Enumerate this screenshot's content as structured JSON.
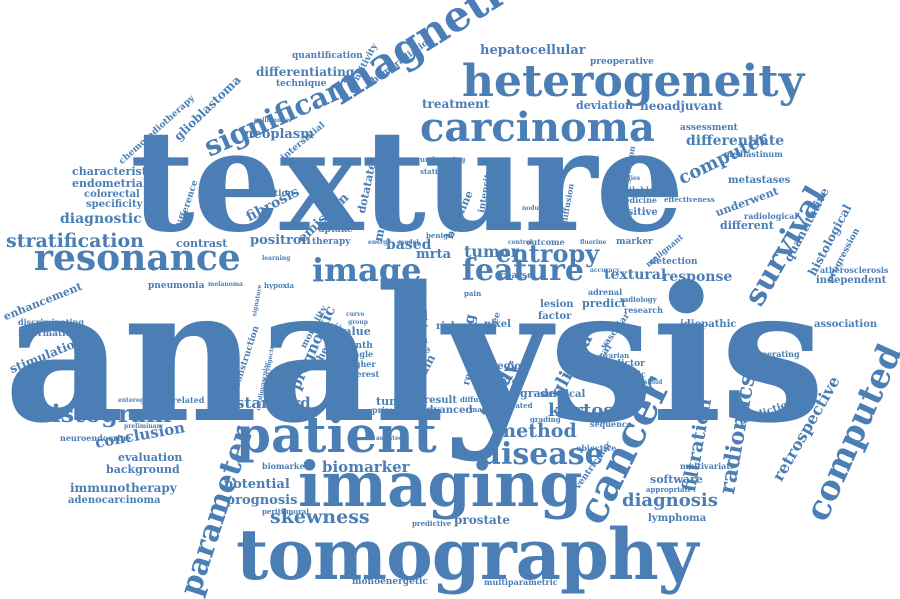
{
  "theme": {
    "word_color": "#4a7eb5",
    "background": "#ffffff"
  },
  "words": {
    "analysis": "analysis",
    "texture": "texture",
    "tomography": "tomography",
    "imaging": "imaging",
    "patient": "patient",
    "heterogeneity": "heterogeneity",
    "carcinoma": "carcinoma",
    "magnetic": "magnetic",
    "resonance": "resonance",
    "image": "image",
    "feature": "feature",
    "cancer": "cancer",
    "computed": "computed",
    "survival": "survival",
    "parameter": "parameter",
    "disease": "disease",
    "histogram": "histogram",
    "significant": "significant",
    "radiomics": "radiomics",
    "stratification": "stratification",
    "skewness": "skewness",
    "entropy": "entropy",
    "tumor": "tumor",
    "method": "method",
    "kurtosis": "kurtosis",
    "diagnosis": "diagnosis",
    "filtration": "filtration",
    "computer": "computer",
    "study": "study",
    "glioma": "glioma",
    "biomarker": "biomarker",
    "conclusion": "conclusion",
    "retrospective": "retrospective",
    "response": "response",
    "textural": "textural",
    "prognostic": "prognostic",
    "differentiate": "differentiate",
    "standard": "standard",
    "fibrosis": "fibrosis",
    "positron": "positron",
    "emission": "emission",
    "based": "based",
    "mrta": "mrta",
    "diagnostic": "diagnostic",
    "enhancement": "enhancement",
    "stimulation": "stimulation",
    "neoplasm": "neoplasm",
    "treatment": "treatment",
    "hepatocellular": "hepatocellular",
    "differentiating": "differentiating",
    "glioblastoma": "glioblastoma",
    "deviation": "deviation",
    "neoadjuvant": "neoadjuvant",
    "potential": "potential",
    "prognosis": "prognosis",
    "immunotherapy": "immunotherapy",
    "adenocarcinoma": "adenocarcinoma",
    "background": "background",
    "evaluation": "evaluation",
    "prostate": "prostate",
    "lymphoma": "lymphoma",
    "software": "software",
    "prediction": "prediction",
    "quantitative": "quantitative",
    "histological": "histological",
    "underwent": "underwent",
    "association": "association",
    "metastases": "metastases",
    "different": "different",
    "positive": "positive",
    "idiopathic": "idiopathic",
    "result": "result",
    "tumour": "tumour",
    "advanced": "advanced",
    "grade": "grade",
    "lesion": "lesion",
    "factor": "factor",
    "predict": "predict",
    "endometrial": "endometrial",
    "colorectal": "colorectal",
    "specificity": "specificity",
    "characteristic": "characteristic",
    "difference": "difference",
    "contrast": "contrast",
    "reconstruction": "reconstruction",
    "pneumonia": "pneumonia",
    "information": "information",
    "discriminating": "discriminating",
    "chemoradiotherapy": "chemoradiotherapy",
    "quantification": "quantification",
    "technique": "technique",
    "chemoradiation": "chemoradiation",
    "sensitivity": "sensitivity",
    "preoperative": "preoperative",
    "assessment": "assessment",
    "mediastinum": "mediastinum",
    "correlation": "correlation",
    "interstitial": "interstitial",
    "metastatic": "metastatic",
    "dotatate": "dotatate",
    "monoenergetic": "monoenergetic",
    "multiparametric": "multiparametric",
    "neuroendocrine": "neuroendocrine",
    "correlated": "correlated",
    "biomarkers": "biomarkers",
    "peritumoral": "peritumoral",
    "cell": "cell",
    "liver": "liver",
    "ctta": "ctta",
    "scale": "scale",
    "risk": "risk",
    "value": "value",
    "month": "month",
    "lung": "lung",
    "brain": "brain",
    "rectal": "rectal",
    "region": "region",
    "pixel": "pixel",
    "detection": "detection",
    "marker": "marker",
    "independent": "independent",
    "atherosclerosis": "atherosclerosis",
    "progression": "progression",
    "radiological": "radiological",
    "coarse": "coarse",
    "outcome": "outcome",
    "hepatic": "hepatic",
    "uptake": "uptake",
    "therapy": "therapy",
    "mortality": "mortality",
    "operating": "operating",
    "multivariate": "multivariate",
    "appropriate": "appropriate",
    "objective": "objective",
    "surgical": "surgical",
    "predictive": "predictive",
    "sequence": "sequence",
    "radiomic": "radiomic",
    "predictor": "predictor",
    "medicine": "medicine",
    "available": "available",
    "regression": "regression",
    "primary": "primary",
    "single": "single",
    "higher": "higher",
    "interest": "interest",
    "texrad": "texrad",
    "treated": "treated",
    "machine": "machine",
    "diffuse": "diffuse",
    "grading": "grading",
    "ventricular": "ventricular",
    "clinical": "clinical",
    "ovarian": "ovarian",
    "vascular": "vascular",
    "research": "research",
    "radiology": "radiology",
    "adrenal": "adrenal",
    "effectiveness": "effectiveness",
    "statistical": "statistical",
    "undergoing": "undergoing",
    "baseline": "baseline",
    "intensity": "intensity",
    "benign": "benign",
    "hypoxia": "hypoxia",
    "melanoma": "melanoma",
    "enterography": "enterography",
    "gallbladder": "gallbladder",
    "signature": "signature",
    "threshold": "threshold",
    "pain": "pain",
    "free": "free",
    "fluorine": "fluorine",
    "malignant": "malignant",
    "diffusion": "diffusion",
    "cardiovascular": "cardiovascular",
    "laryngectomy": "laryngectomy",
    "studies": "studies",
    "learning": "learning",
    "control": "control",
    "nodule": "nodule",
    "model": "model",
    "energy": "energy",
    "curve": "curve",
    "group": "group",
    "preliminary": "preliminary",
    "pathology": "pathology",
    "assisted": "assisted",
    "accuracy": "accuracy"
  }
}
